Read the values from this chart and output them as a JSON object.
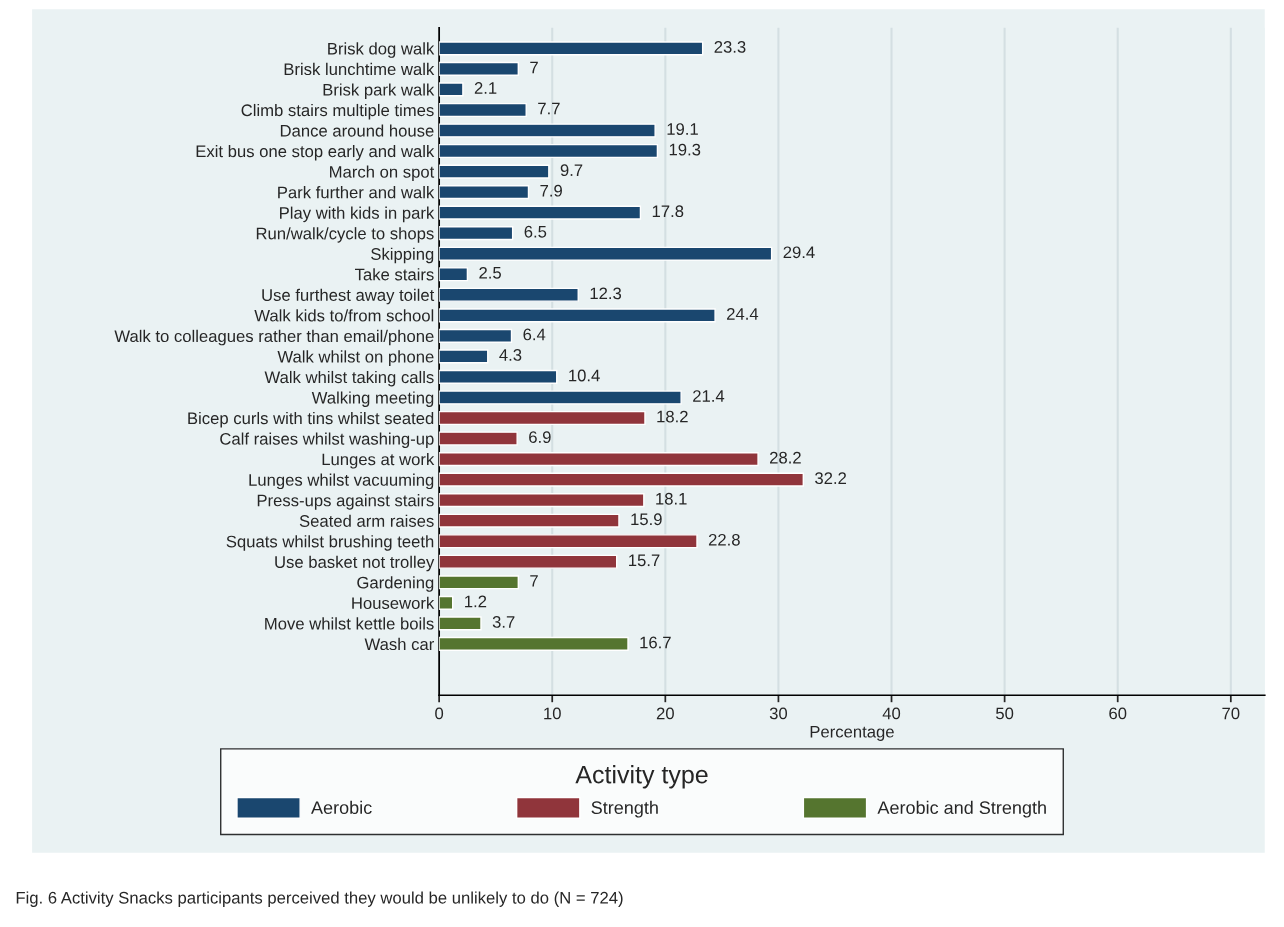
{
  "chart_data": {
    "type": "bar",
    "orientation": "horizontal",
    "xlabel": "Percentage",
    "legend_title": "Activity type",
    "categories": [
      "Brisk dog walk",
      "Brisk lunchtime walk",
      "Brisk park walk",
      "Climb stairs multiple times",
      "Dance around house",
      "Exit bus one stop early and walk",
      "March on spot",
      "Park further and walk",
      "Play with kids in park",
      "Run/walk/cycle to shops",
      "Skipping",
      "Take stairs",
      "Use furthest away toilet",
      "Walk kids to/from school",
      "Walk to colleagues rather than email/phone",
      "Walk whilst on phone",
      "Walk whilst taking calls",
      "Walking meeting",
      "Bicep curls with tins whilst seated",
      "Calf raises whilst washing-up",
      "Lunges at work",
      "Lunges whilst vacuuming",
      "Press-ups against stairs",
      "Seated arm raises",
      "Squats whilst brushing teeth",
      "Use basket not trolley",
      "Gardening",
      "Housework",
      "Move whilst kettle boils",
      "Wash car"
    ],
    "series": [
      {
        "name": "Aerobic",
        "color": "#1a476f",
        "values": [
          23.3,
          7,
          2.1,
          7.7,
          19.1,
          19.3,
          9.7,
          7.9,
          17.8,
          6.5,
          29.4,
          2.5,
          12.3,
          24.4,
          6.4,
          4.3,
          10.4,
          21.4,
          null,
          null,
          null,
          null,
          null,
          null,
          null,
          null,
          null,
          null,
          null,
          null
        ]
      },
      {
        "name": "Strength",
        "color": "#90353b",
        "values": [
          null,
          null,
          null,
          null,
          null,
          null,
          null,
          null,
          null,
          null,
          null,
          null,
          null,
          null,
          null,
          null,
          null,
          null,
          18.2,
          6.9,
          28.2,
          32.2,
          18.1,
          15.9,
          22.8,
          15.7,
          null,
          null,
          null,
          null
        ]
      },
      {
        "name": "Aerobic and Strength",
        "color": "#55752f",
        "values": [
          null,
          null,
          null,
          null,
          null,
          null,
          null,
          null,
          null,
          null,
          null,
          null,
          null,
          null,
          null,
          null,
          null,
          null,
          null,
          null,
          null,
          null,
          null,
          null,
          null,
          null,
          7,
          1.2,
          3.7,
          16.7
        ]
      }
    ],
    "xlim": [
      0,
      73
    ],
    "xticks": [
      0,
      10,
      20,
      30,
      40,
      50,
      60,
      70
    ],
    "grid": "x",
    "data_labels": true,
    "legend": "bottom",
    "annotations": [
      "Fig. 6 Activity Snacks participants perceived they would be unlikely to do (N = 724)"
    ]
  }
}
